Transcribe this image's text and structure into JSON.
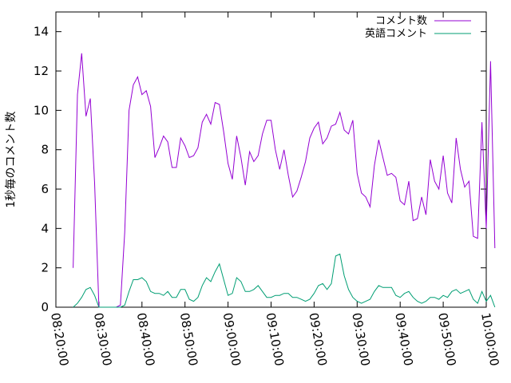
{
  "chart_data": {
    "type": "line",
    "title": "",
    "xlabel": "",
    "ylabel": "1秒毎のコメント数",
    "ylim": [
      0,
      15
    ],
    "yticks": [
      0,
      2,
      4,
      6,
      8,
      10,
      12,
      14
    ],
    "xlim": [
      "08:20:00",
      "10:00:00"
    ],
    "xticks": [
      "08:20:00",
      "08:30:00",
      "08:40:00",
      "08:50:00",
      "09:00:00",
      "09:10:00",
      "09:20:00",
      "09:30:00",
      "09:40:00",
      "09:50:00",
      "10:00:00"
    ],
    "legend_position": "top-right",
    "grid": false,
    "series": [
      {
        "name": "コメント数",
        "color": "#9400d3",
        "points": [
          [
            "08:24:00",
            2.0
          ],
          [
            "08:25:00",
            10.8
          ],
          [
            "08:26:00",
            12.9
          ],
          [
            "08:27:00",
            9.7
          ],
          [
            "08:28:00",
            10.6
          ],
          [
            "08:29:00",
            6.3
          ],
          [
            "08:30:00",
            0.0
          ],
          [
            "08:34:00",
            0.0
          ],
          [
            "08:35:00",
            0.1
          ],
          [
            "08:36:00",
            3.8
          ],
          [
            "08:37:00",
            10.0
          ],
          [
            "08:38:00",
            11.3
          ],
          [
            "08:39:00",
            11.7
          ],
          [
            "08:40:00",
            10.8
          ],
          [
            "08:41:00",
            11.0
          ],
          [
            "08:42:00",
            10.2
          ],
          [
            "08:43:00",
            7.6
          ],
          [
            "08:44:00",
            8.1
          ],
          [
            "08:45:00",
            8.7
          ],
          [
            "08:46:00",
            8.4
          ],
          [
            "08:47:00",
            7.1
          ],
          [
            "08:48:00",
            7.1
          ],
          [
            "08:49:00",
            8.6
          ],
          [
            "08:50:00",
            8.2
          ],
          [
            "08:51:00",
            7.6
          ],
          [
            "08:52:00",
            7.7
          ],
          [
            "08:53:00",
            8.1
          ],
          [
            "08:54:00",
            9.4
          ],
          [
            "08:55:00",
            9.8
          ],
          [
            "08:56:00",
            9.3
          ],
          [
            "08:57:00",
            10.4
          ],
          [
            "08:58:00",
            10.3
          ],
          [
            "08:59:00",
            8.9
          ],
          [
            "09:00:00",
            7.3
          ],
          [
            "09:01:00",
            6.5
          ],
          [
            "09:02:00",
            8.7
          ],
          [
            "09:03:00",
            7.6
          ],
          [
            "09:04:00",
            6.2
          ],
          [
            "09:05:00",
            7.9
          ],
          [
            "09:06:00",
            7.4
          ],
          [
            "09:07:00",
            7.7
          ],
          [
            "09:08:00",
            8.8
          ],
          [
            "09:09:00",
            9.5
          ],
          [
            "09:10:00",
            9.5
          ],
          [
            "09:11:00",
            8.0
          ],
          [
            "09:12:00",
            7.0
          ],
          [
            "09:13:00",
            8.0
          ],
          [
            "09:14:00",
            6.7
          ],
          [
            "09:15:00",
            5.6
          ],
          [
            "09:16:00",
            5.9
          ],
          [
            "09:17:00",
            6.6
          ],
          [
            "09:18:00",
            7.4
          ],
          [
            "09:19:00",
            8.6
          ],
          [
            "09:20:00",
            9.1
          ],
          [
            "09:21:00",
            9.4
          ],
          [
            "09:22:00",
            8.3
          ],
          [
            "09:23:00",
            8.6
          ],
          [
            "09:24:00",
            9.2
          ],
          [
            "09:25:00",
            9.3
          ],
          [
            "09:26:00",
            9.9
          ],
          [
            "09:27:00",
            9.0
          ],
          [
            "09:28:00",
            8.8
          ],
          [
            "09:29:00",
            9.5
          ],
          [
            "09:30:00",
            6.8
          ],
          [
            "09:31:00",
            5.8
          ],
          [
            "09:32:00",
            5.6
          ],
          [
            "09:33:00",
            5.1
          ],
          [
            "09:34:00",
            7.2
          ],
          [
            "09:35:00",
            8.5
          ],
          [
            "09:36:00",
            7.6
          ],
          [
            "09:37:00",
            6.7
          ],
          [
            "09:38:00",
            6.8
          ],
          [
            "09:39:00",
            6.6
          ],
          [
            "09:40:00",
            5.4
          ],
          [
            "09:41:00",
            5.2
          ],
          [
            "09:42:00",
            6.4
          ],
          [
            "09:43:00",
            4.4
          ],
          [
            "09:44:00",
            4.5
          ],
          [
            "09:45:00",
            5.6
          ],
          [
            "09:46:00",
            4.7
          ],
          [
            "09:47:00",
            7.5
          ],
          [
            "09:48:00",
            6.4
          ],
          [
            "09:49:00",
            6.0
          ],
          [
            "09:50:00",
            7.7
          ],
          [
            "09:51:00",
            5.8
          ],
          [
            "09:52:00",
            5.3
          ],
          [
            "09:53:00",
            8.6
          ],
          [
            "09:54:00",
            7.0
          ],
          [
            "09:55:00",
            6.1
          ],
          [
            "09:56:00",
            6.4
          ],
          [
            "09:57:00",
            3.6
          ],
          [
            "09:58:00",
            3.5
          ],
          [
            "09:59:00",
            9.4
          ],
          [
            "10:00:00",
            4.0
          ],
          [
            "10:01:00",
            12.5
          ],
          [
            "10:02:00",
            3.0
          ]
        ]
      },
      {
        "name": "英語コメント",
        "color": "#009e73",
        "points": [
          [
            "08:24:00",
            0.0
          ],
          [
            "08:25:00",
            0.2
          ],
          [
            "08:26:00",
            0.5
          ],
          [
            "08:27:00",
            0.9
          ],
          [
            "08:28:00",
            1.0
          ],
          [
            "08:29:00",
            0.6
          ],
          [
            "08:30:00",
            0.0
          ],
          [
            "08:34:00",
            0.0
          ],
          [
            "08:35:00",
            0.0
          ],
          [
            "08:36:00",
            0.1
          ],
          [
            "08:37:00",
            0.8
          ],
          [
            "08:38:00",
            1.4
          ],
          [
            "08:39:00",
            1.4
          ],
          [
            "08:40:00",
            1.5
          ],
          [
            "08:41:00",
            1.3
          ],
          [
            "08:42:00",
            0.8
          ],
          [
            "08:43:00",
            0.7
          ],
          [
            "08:44:00",
            0.7
          ],
          [
            "08:45:00",
            0.6
          ],
          [
            "08:46:00",
            0.8
          ],
          [
            "08:47:00",
            0.5
          ],
          [
            "08:48:00",
            0.5
          ],
          [
            "08:49:00",
            0.9
          ],
          [
            "08:50:00",
            0.9
          ],
          [
            "08:51:00",
            0.4
          ],
          [
            "08:52:00",
            0.3
          ],
          [
            "08:53:00",
            0.5
          ],
          [
            "08:54:00",
            1.1
          ],
          [
            "08:55:00",
            1.5
          ],
          [
            "08:56:00",
            1.3
          ],
          [
            "08:57:00",
            1.8
          ],
          [
            "08:58:00",
            2.2
          ],
          [
            "08:59:00",
            1.4
          ],
          [
            "09:00:00",
            0.6
          ],
          [
            "09:01:00",
            0.7
          ],
          [
            "09:02:00",
            1.5
          ],
          [
            "09:03:00",
            1.3
          ],
          [
            "09:04:00",
            0.8
          ],
          [
            "09:05:00",
            0.8
          ],
          [
            "09:06:00",
            0.9
          ],
          [
            "09:07:00",
            1.1
          ],
          [
            "09:08:00",
            0.8
          ],
          [
            "09:09:00",
            0.5
          ],
          [
            "09:10:00",
            0.5
          ],
          [
            "09:11:00",
            0.6
          ],
          [
            "09:12:00",
            0.6
          ],
          [
            "09:13:00",
            0.7
          ],
          [
            "09:14:00",
            0.7
          ],
          [
            "09:15:00",
            0.5
          ],
          [
            "09:16:00",
            0.5
          ],
          [
            "09:17:00",
            0.4
          ],
          [
            "09:18:00",
            0.3
          ],
          [
            "09:19:00",
            0.4
          ],
          [
            "09:20:00",
            0.7
          ],
          [
            "09:21:00",
            1.1
          ],
          [
            "09:22:00",
            1.2
          ],
          [
            "09:23:00",
            0.9
          ],
          [
            "09:24:00",
            1.2
          ],
          [
            "09:25:00",
            2.6
          ],
          [
            "09:26:00",
            2.7
          ],
          [
            "09:27:00",
            1.6
          ],
          [
            "09:28:00",
            0.9
          ],
          [
            "09:29:00",
            0.5
          ],
          [
            "09:30:00",
            0.3
          ],
          [
            "09:31:00",
            0.2
          ],
          [
            "09:32:00",
            0.3
          ],
          [
            "09:33:00",
            0.4
          ],
          [
            "09:34:00",
            0.8
          ],
          [
            "09:35:00",
            1.1
          ],
          [
            "09:36:00",
            1.0
          ],
          [
            "09:37:00",
            1.0
          ],
          [
            "09:38:00",
            1.0
          ],
          [
            "09:39:00",
            0.6
          ],
          [
            "09:40:00",
            0.5
          ],
          [
            "09:41:00",
            0.7
          ],
          [
            "09:42:00",
            0.8
          ],
          [
            "09:43:00",
            0.5
          ],
          [
            "09:44:00",
            0.3
          ],
          [
            "09:45:00",
            0.2
          ],
          [
            "09:46:00",
            0.3
          ],
          [
            "09:47:00",
            0.5
          ],
          [
            "09:48:00",
            0.5
          ],
          [
            "09:49:00",
            0.4
          ],
          [
            "09:50:00",
            0.6
          ],
          [
            "09:51:00",
            0.5
          ],
          [
            "09:52:00",
            0.8
          ],
          [
            "09:53:00",
            0.9
          ],
          [
            "09:54:00",
            0.7
          ],
          [
            "09:55:00",
            0.8
          ],
          [
            "09:56:00",
            0.9
          ],
          [
            "09:57:00",
            0.4
          ],
          [
            "09:58:00",
            0.2
          ],
          [
            "09:59:00",
            0.8
          ],
          [
            "10:00:00",
            0.3
          ],
          [
            "10:01:00",
            0.6
          ],
          [
            "10:02:00",
            0.0
          ]
        ]
      }
    ]
  }
}
